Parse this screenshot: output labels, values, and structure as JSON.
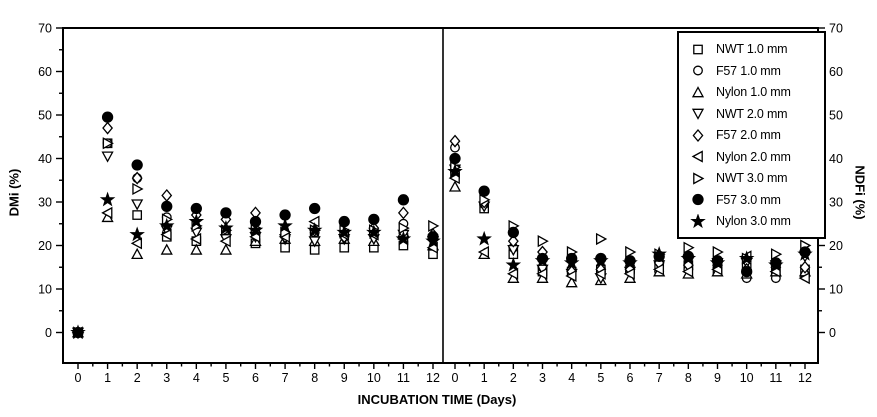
{
  "colors": {
    "foreground": "#000000",
    "background": "#ffffff"
  },
  "figure": {
    "x_axis_title": "INCUBATION TIME (Days)",
    "left_axis_title": "DMi (%)",
    "right_axis_title": "NDFi (%)"
  },
  "axes": {
    "y": {
      "min": 0,
      "max": 70,
      "major_step": 10,
      "minor_step": 5,
      "tick_labels": [
        "0",
        "10",
        "20",
        "30",
        "40",
        "50",
        "60",
        "70"
      ]
    },
    "x": {
      "min": 0,
      "max": 12,
      "major_step": 1,
      "minor_step": 0.5,
      "tick_labels": [
        "0",
        "1",
        "2",
        "3",
        "4",
        "5",
        "6",
        "7",
        "8",
        "9",
        "10",
        "11",
        "12"
      ]
    }
  },
  "legend": {
    "position": "top-right-inside-right-panel",
    "items": [
      {
        "marker": "square-open",
        "label": "NWT 1.0 mm"
      },
      {
        "marker": "circle-open",
        "label": "F57 1.0 mm"
      },
      {
        "marker": "triangle-up-open",
        "label": "Nylon 1.0 mm"
      },
      {
        "marker": "triangle-down-open",
        "label": "NWT 2.0 mm"
      },
      {
        "marker": "diamond-open",
        "label": "F57 2.0 mm"
      },
      {
        "marker": "triangle-left-open",
        "label": "Nylon 2.0 mm"
      },
      {
        "marker": "triangle-right-open",
        "label": "NWT 3.0 mm"
      },
      {
        "marker": "circle-filled",
        "label": "F57 3.0 mm"
      },
      {
        "marker": "star-filled",
        "label": "Nylon 3.0 mm"
      }
    ]
  },
  "chart_data": [
    {
      "type": "scatter",
      "panel": "left",
      "ylabel": "DMi (%)",
      "xlabel": "INCUBATION TIME (Days)",
      "ylim": [
        0,
        70
      ],
      "x": [
        0,
        1,
        2,
        3,
        4,
        5,
        6,
        7,
        8,
        9,
        10,
        11,
        12
      ],
      "grid": false,
      "series": [
        {
          "name": "NWT 1.0 mm",
          "marker": "square-open",
          "values": [
            0,
            43.5,
            27.0,
            22.0,
            21.0,
            23.0,
            20.5,
            19.5,
            19.0,
            19.5,
            19.5,
            20.0,
            18.0
          ]
        },
        {
          "name": "F57 1.0 mm",
          "marker": "circle-open",
          "values": [
            0,
            43.5,
            35.5,
            26.5,
            24.0,
            23.5,
            23.0,
            22.5,
            23.0,
            23.0,
            23.0,
            25.0,
            21.5
          ]
        },
        {
          "name": "Nylon 1.0 mm",
          "marker": "triangle-up-open",
          "values": [
            0,
            26.5,
            18.0,
            19.0,
            19.0,
            19.0,
            21.0,
            21.5,
            21.0,
            21.5,
            21.0,
            23.0,
            20.0
          ]
        },
        {
          "name": "NWT 2.0 mm",
          "marker": "triangle-down-open",
          "values": [
            0,
            40.5,
            29.5,
            23.5,
            23.0,
            21.5,
            22.0,
            21.5,
            21.0,
            21.5,
            21.5,
            22.5,
            21.0
          ]
        },
        {
          "name": "F57 2.0 mm",
          "marker": "diamond-open",
          "values": [
            0,
            47.0,
            35.5,
            31.5,
            27.0,
            26.0,
            27.5,
            22.0,
            23.5,
            22.0,
            24.0,
            27.5,
            22.5
          ]
        },
        {
          "name": "Nylon 2.0 mm",
          "marker": "triangle-left-open",
          "values": [
            0,
            27.5,
            20.5,
            22.5,
            21.5,
            21.0,
            22.0,
            22.0,
            25.5,
            22.5,
            22.5,
            21.5,
            19.5
          ]
        },
        {
          "name": "NWT 3.0 mm",
          "marker": "triangle-right-open",
          "values": [
            0,
            43.5,
            33.0,
            26.0,
            24.5,
            23.5,
            24.0,
            23.0,
            23.5,
            23.5,
            23.5,
            24.0,
            24.5
          ]
        },
        {
          "name": "F57 3.0 mm",
          "marker": "circle-filled",
          "values": [
            0,
            49.5,
            38.5,
            29.0,
            28.5,
            27.5,
            25.5,
            27.0,
            28.5,
            25.5,
            26.0,
            30.5,
            22.0
          ]
        },
        {
          "name": "Nylon 3.0 mm",
          "marker": "star-filled",
          "values": [
            0,
            30.5,
            22.5,
            24.5,
            25.5,
            24.0,
            23.5,
            24.5,
            23.5,
            23.0,
            23.0,
            21.5,
            21.0
          ]
        }
      ]
    },
    {
      "type": "scatter",
      "panel": "right",
      "ylabel": "NDFi (%)",
      "xlabel": "INCUBATION TIME (Days)",
      "ylim": [
        0,
        70
      ],
      "x": [
        0,
        1,
        2,
        3,
        4,
        5,
        6,
        7,
        8,
        9,
        10,
        11,
        12
      ],
      "grid": false,
      "series": [
        {
          "name": "NWT 1.0 mm",
          "marker": "square-open",
          "values": [
            36.5,
            28.5,
            18.0,
            14.0,
            14.0,
            14.5,
            14.5,
            15.0,
            15.5,
            14.0,
            15.0,
            14.5,
            14.5
          ]
        },
        {
          "name": "F57 1.0 mm",
          "marker": "circle-open",
          "values": [
            42.5,
            29.5,
            19.5,
            15.0,
            14.5,
            14.0,
            14.0,
            14.0,
            14.5,
            15.0,
            12.5,
            12.5,
            13.0
          ]
        },
        {
          "name": "Nylon 1.0 mm",
          "marker": "triangle-up-open",
          "values": [
            33.5,
            18.0,
            12.5,
            12.5,
            11.5,
            12.0,
            12.5,
            14.0,
            13.5,
            14.0,
            13.5,
            14.0,
            14.0
          ]
        },
        {
          "name": "NWT 2.0 mm",
          "marker": "triangle-down-open",
          "values": [
            37.5,
            29.0,
            19.0,
            14.5,
            13.5,
            12.5,
            14.0,
            15.5,
            16.5,
            16.0,
            16.0,
            15.5,
            17.5
          ]
        },
        {
          "name": "F57 2.0 mm",
          "marker": "diamond-open",
          "values": [
            44.0,
            30.0,
            21.0,
            18.5,
            14.0,
            14.5,
            14.5,
            16.0,
            15.5,
            15.5,
            14.5,
            15.0,
            15.0
          ]
        },
        {
          "name": "Nylon 2.0 mm",
          "marker": "triangle-left-open",
          "values": [
            35.5,
            18.5,
            13.5,
            13.5,
            13.0,
            13.5,
            13.5,
            14.5,
            14.0,
            14.5,
            17.5,
            14.0,
            12.5
          ]
        },
        {
          "name": "NWT 3.0 mm",
          "marker": "triangle-right-open",
          "values": [
            38.0,
            30.5,
            24.5,
            21.0,
            18.5,
            21.5,
            18.5,
            18.0,
            19.5,
            18.5,
            17.0,
            18.0,
            20.0
          ]
        },
        {
          "name": "F57 3.0 mm",
          "marker": "circle-filled",
          "values": [
            40.0,
            32.5,
            23.0,
            17.0,
            17.0,
            17.0,
            16.5,
            17.5,
            17.5,
            16.5,
            14.0,
            16.0,
            18.5
          ]
        },
        {
          "name": "Nylon 3.0 mm",
          "marker": "star-filled",
          "values": [
            37.0,
            21.5,
            15.5,
            16.5,
            16.0,
            16.5,
            16.0,
            18.0,
            17.0,
            16.0,
            17.0,
            15.5,
            18.0
          ]
        }
      ]
    }
  ]
}
